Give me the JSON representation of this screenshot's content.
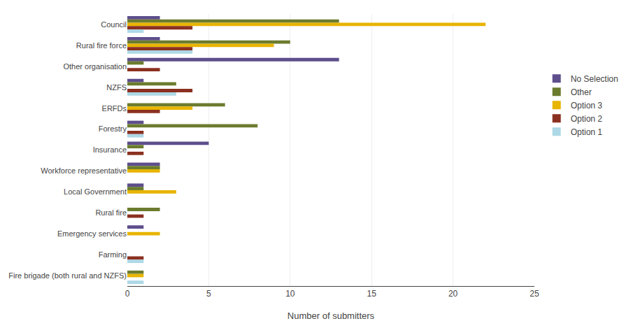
{
  "chart_data": {
    "type": "bar",
    "orientation": "horizontal",
    "categories": [
      "Council",
      "Rural fire force",
      "Other organisation",
      "NZFS",
      "ERFDs",
      "Forestry",
      "Insurance",
      "Workforce representative",
      "Local Government",
      "Rural fire",
      "Emergency services",
      "Farming",
      "Fire brigade (both rural and NZFS)"
    ],
    "series": [
      {
        "name": "No Selection",
        "color": "#5d4e8c",
        "values": [
          2,
          2,
          13,
          1,
          0,
          1,
          5,
          2,
          1,
          0,
          1,
          0,
          0
        ]
      },
      {
        "name": "Other",
        "color": "#6b7c2e",
        "values": [
          13,
          10,
          1,
          3,
          6,
          8,
          1,
          2,
          1,
          2,
          0,
          0,
          1
        ]
      },
      {
        "name": "Option 3",
        "color": "#e8b400",
        "values": [
          22,
          9,
          0,
          0,
          4,
          0,
          0,
          2,
          3,
          0,
          2,
          0,
          1
        ]
      },
      {
        "name": "Option 2",
        "color": "#8b3020",
        "values": [
          4,
          4,
          2,
          4,
          2,
          1,
          1,
          0,
          0,
          1,
          0,
          1,
          0
        ]
      },
      {
        "name": "Option 1",
        "color": "#add8e6",
        "values": [
          1,
          4,
          0,
          3,
          0,
          1,
          0,
          0,
          0,
          0,
          0,
          1,
          1
        ]
      }
    ],
    "xlabel": "Number of submitters",
    "xlim": [
      0,
      25
    ],
    "xticks": [
      0,
      5,
      10,
      15,
      20,
      25
    ],
    "grid": true,
    "legend": "right"
  }
}
